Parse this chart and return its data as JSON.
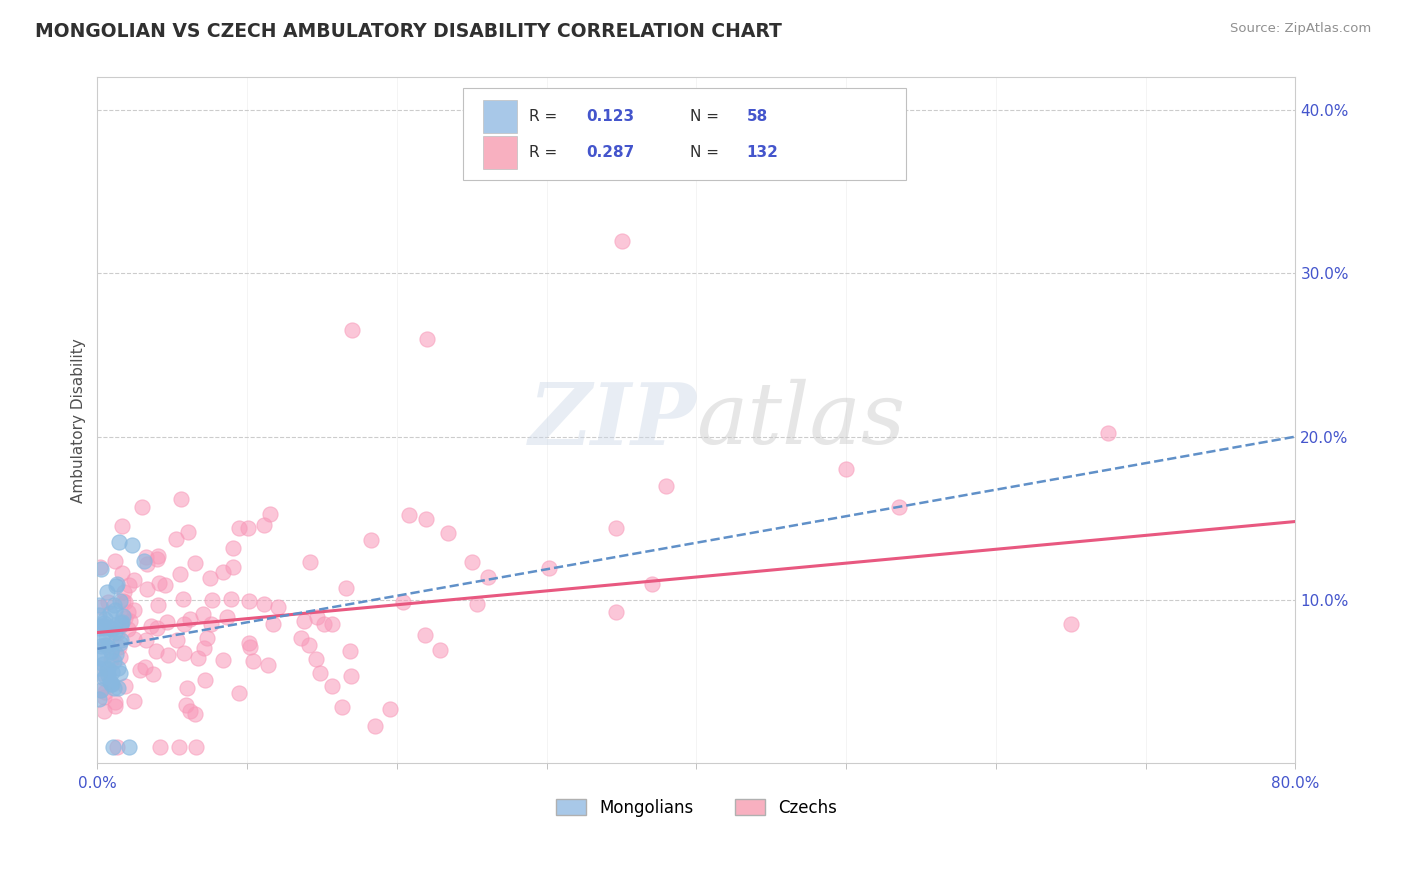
{
  "title": "MONGOLIAN VS CZECH AMBULATORY DISABILITY CORRELATION CHART",
  "source": "Source: ZipAtlas.com",
  "ylabel": "Ambulatory Disability",
  "watermark": "ZIPatlas",
  "mongolian_R": 0.123,
  "mongolian_N": 58,
  "czech_R": 0.287,
  "czech_N": 132,
  "mongolian_color": "#a8c8e8",
  "czech_color": "#f8b0c0",
  "mongolian_scatter_color": "#88b8e0",
  "czech_scatter_color": "#f898b8",
  "trend_mongolian_color": "#6090c8",
  "trend_czech_color": "#e85880",
  "background_color": "#ffffff",
  "grid_color": "#cccccc",
  "title_color": "#303030",
  "axis_label_color": "#4455cc",
  "legend_value_color": "#4455cc",
  "xmin": 0.0,
  "xmax": 0.8,
  "ymin": 0.0,
  "ymax": 0.42,
  "y_ticks_right": [
    0.1,
    0.2,
    0.3,
    0.4
  ],
  "y_tick_labels_right": [
    "10.0%",
    "20.0%",
    "30.0%",
    "40.0%"
  ],
  "mong_trend_x0": 0.0,
  "mong_trend_y0": 0.07,
  "mong_trend_x1": 0.8,
  "mong_trend_y1": 0.2,
  "czech_trend_x0": 0.0,
  "czech_trend_y0": 0.08,
  "czech_trend_x1": 0.8,
  "czech_trend_y1": 0.148
}
